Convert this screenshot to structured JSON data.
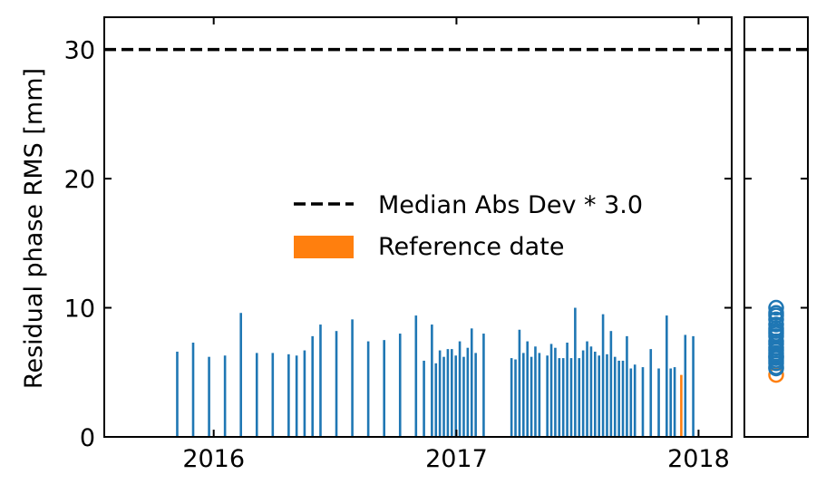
{
  "chart_data": [
    {
      "type": "bar",
      "ylabel": "Residual phase RMS [mm]",
      "xlabel": "",
      "x_ticks": [
        "2016",
        "2017",
        "2018"
      ],
      "y_ticks": [
        "0",
        "10",
        "20",
        "30"
      ],
      "xlim": [
        "2015-07-20",
        "2018-02-20"
      ],
      "ylim": [
        0,
        32.5
      ],
      "threshold": {
        "label": "Median Abs Dev * 3.0",
        "value": 30.0,
        "style": "dashed",
        "color": "#000000"
      },
      "reference": {
        "label": "Reference date",
        "date": "2017-12-06",
        "value": 4.8,
        "color": "#ff7f0e"
      },
      "bar_color": "#1f77b4",
      "legend_position": "center-right",
      "series": [
        {
          "dates": [
            "2015-11-07",
            "2015-12-01",
            "2015-12-25",
            "2016-01-18",
            "2016-02-11",
            "2016-03-06",
            "2016-03-30",
            "2016-04-23",
            "2016-05-05",
            "2016-05-17",
            "2016-05-29",
            "2016-06-10",
            "2016-07-04",
            "2016-07-28",
            "2016-08-21",
            "2016-09-14",
            "2016-10-08",
            "2016-11-01",
            "2016-11-13",
            "2016-11-25",
            "2016-12-01",
            "2016-12-07",
            "2016-12-13",
            "2016-12-19",
            "2016-12-25",
            "2016-12-31",
            "2017-01-06",
            "2017-01-12",
            "2017-01-18",
            "2017-01-24",
            "2017-01-30",
            "2017-02-11",
            "2017-03-25",
            "2017-03-31",
            "2017-04-06",
            "2017-04-12",
            "2017-04-18",
            "2017-04-24",
            "2017-04-30",
            "2017-05-06",
            "2017-05-18",
            "2017-05-24",
            "2017-05-30",
            "2017-06-05",
            "2017-06-11",
            "2017-06-17",
            "2017-06-23",
            "2017-06-29",
            "2017-07-05",
            "2017-07-11",
            "2017-07-17",
            "2017-07-23",
            "2017-07-29",
            "2017-08-04",
            "2017-08-10",
            "2017-08-16",
            "2017-08-22",
            "2017-08-28",
            "2017-09-03",
            "2017-09-09",
            "2017-09-15",
            "2017-09-21",
            "2017-09-27",
            "2017-10-09",
            "2017-10-21",
            "2017-11-02",
            "2017-11-14",
            "2017-11-20",
            "2017-11-26",
            "2017-12-12",
            "2017-12-24"
          ],
          "values": [
            6.6,
            7.3,
            6.2,
            6.3,
            9.6,
            6.5,
            6.5,
            6.4,
            6.3,
            6.7,
            7.8,
            8.7,
            8.2,
            9.1,
            7.4,
            7.5,
            8.0,
            9.4,
            5.9,
            8.7,
            5.7,
            6.7,
            6.2,
            6.8,
            6.8,
            6.3,
            7.4,
            6.2,
            6.9,
            8.4,
            6.5,
            8.0,
            6.1,
            6.0,
            8.3,
            6.5,
            7.4,
            6.2,
            7.0,
            6.5,
            6.3,
            7.2,
            6.9,
            6.1,
            6.1,
            7.3,
            6.1,
            10.0,
            6.1,
            6.7,
            7.4,
            7.0,
            6.6,
            6.3,
            9.5,
            6.4,
            8.2,
            6.2,
            5.9,
            5.9,
            7.8,
            5.3,
            5.6,
            5.4,
            6.8,
            5.3,
            9.4,
            5.3,
            5.4,
            7.9,
            7.8
          ]
        }
      ]
    },
    {
      "type": "scatter",
      "ylim": [
        0,
        32.5
      ],
      "values": [
        4.8,
        5.3,
        5.4,
        5.7,
        5.9,
        6.1,
        6.2,
        6.3,
        6.5,
        6.7,
        6.9,
        7.2,
        7.4,
        7.8,
        8.0,
        8.2,
        8.4,
        8.7,
        9.1,
        9.4,
        9.6,
        10.0
      ],
      "highlight": {
        "value": 4.8,
        "color": "#ff7f0e"
      },
      "threshold": {
        "value": 30.0
      },
      "marker_color": "#1f77b4"
    }
  ]
}
